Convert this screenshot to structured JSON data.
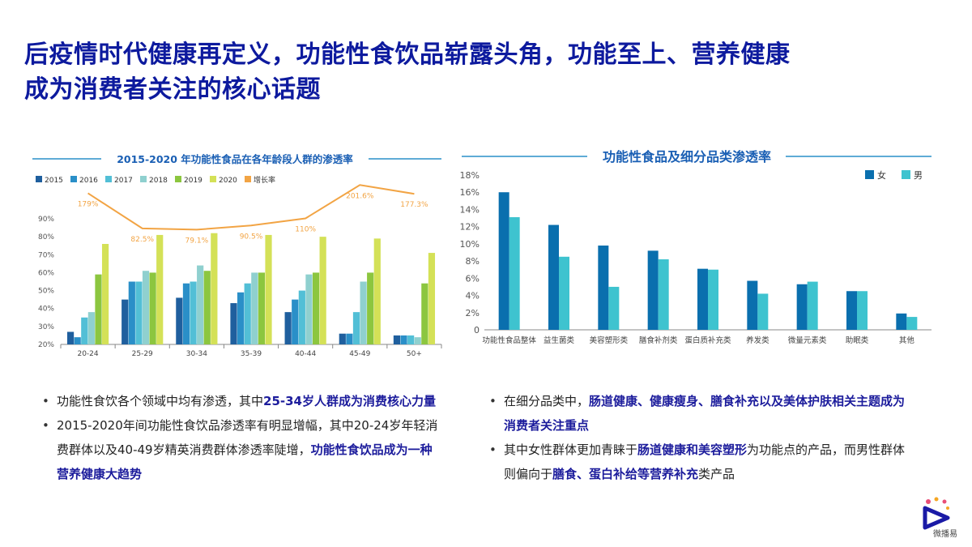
{
  "title": {
    "line1": "后疫情时代健康再定义，功能性食饮品崭露头角，功能至上、营养健康",
    "line2": "成为消费者关注的核心话题"
  },
  "chart_data": [
    {
      "type": "bar",
      "title": "2015-2020 年功能性食品在各年龄段人群的渗透率",
      "categories": [
        "20-24",
        "25-29",
        "30-34",
        "35-39",
        "40-44",
        "45-49",
        "50+"
      ],
      "series": [
        {
          "name": "2015",
          "color": "#1f5f9e",
          "values": [
            27,
            45,
            46,
            43,
            38,
            26,
            25
          ]
        },
        {
          "name": "2016",
          "color": "#2a8fc8",
          "values": [
            24,
            55,
            54,
            49,
            45,
            26,
            25
          ]
        },
        {
          "name": "2017",
          "color": "#52bfd6",
          "values": [
            35,
            55,
            55,
            54,
            50,
            38,
            25
          ]
        },
        {
          "name": "2018",
          "color": "#8fd0cf",
          "values": [
            38,
            61,
            64,
            60,
            59,
            55,
            24
          ]
        },
        {
          "name": "2019",
          "color": "#8cc63f",
          "values": [
            59,
            60,
            61,
            60,
            60,
            60,
            54
          ]
        },
        {
          "name": "2020",
          "color": "#d4e157",
          "values": [
            76,
            81,
            82,
            81,
            80,
            79,
            71
          ]
        }
      ],
      "growth": {
        "name": "增长率",
        "color": "#f2a444",
        "values": [
          179,
          82.5,
          79.1,
          90.5,
          110,
          201.6,
          177.3
        ],
        "labels": [
          "179%",
          "82.5%",
          "79.1%",
          "90.5%",
          "110%",
          "201.6%",
          "177.3%"
        ]
      },
      "yticks": [
        "90%",
        "80%",
        "70%",
        "60%",
        "50%",
        "40%",
        "30%",
        "20%"
      ],
      "ylim": [
        20,
        90
      ]
    },
    {
      "type": "bar",
      "title": "功能性食品及细分品类渗透率",
      "categories": [
        "功能性食品整体",
        "益生菌类",
        "美容塑形类",
        "膳食补剂类",
        "蛋白质补充类",
        "养发类",
        "微量元素类",
        "助眠类",
        "其他"
      ],
      "series": [
        {
          "name": "女",
          "color": "#0a6fae",
          "values": [
            16,
            12.2,
            9.8,
            9.2,
            7.1,
            5.7,
            5.3,
            4.5,
            1.9
          ]
        },
        {
          "name": "男",
          "color": "#3ec3cf",
          "values": [
            13.1,
            8.5,
            5.0,
            8.2,
            7.0,
            4.2,
            5.6,
            4.5,
            1.5
          ]
        }
      ],
      "yticks": [
        "18%",
        "16%",
        "14%",
        "12%",
        "10%",
        "8%",
        "6%",
        "4%",
        "2%",
        "0"
      ],
      "ylim": [
        0,
        18
      ]
    }
  ],
  "bullets_left": [
    {
      "text": "功能性食饮各个领域中均有渗透，其中",
      "highlight": "25-34岁人群成为消费核心力量",
      "tail": ""
    },
    {
      "text": "2015-2020年间功能性食饮品渗透率有明显增幅，其中20-24岁年轻消费群体以及40-49岁精英消费群体渗透率陡增，",
      "highlight": "功能性食饮品成为一种营养健康大趋势",
      "tail": ""
    }
  ],
  "bullets_right": [
    {
      "text": "在细分品类中，",
      "highlight": "肠道健康、健康瘦身、膳食补充以及美体护肤相关主题成为消费者关注重点",
      "tail": ""
    },
    {
      "text": "其中女性群体更加青睐于",
      "highlight": "肠道健康和美容塑形",
      "tail": "为功能点的产品，而男性群体则偏向于",
      "highlight2": "膳食、蛋白补给等营养补充",
      "tail2": "类产品"
    }
  ],
  "logo": {
    "text": "微播易"
  }
}
